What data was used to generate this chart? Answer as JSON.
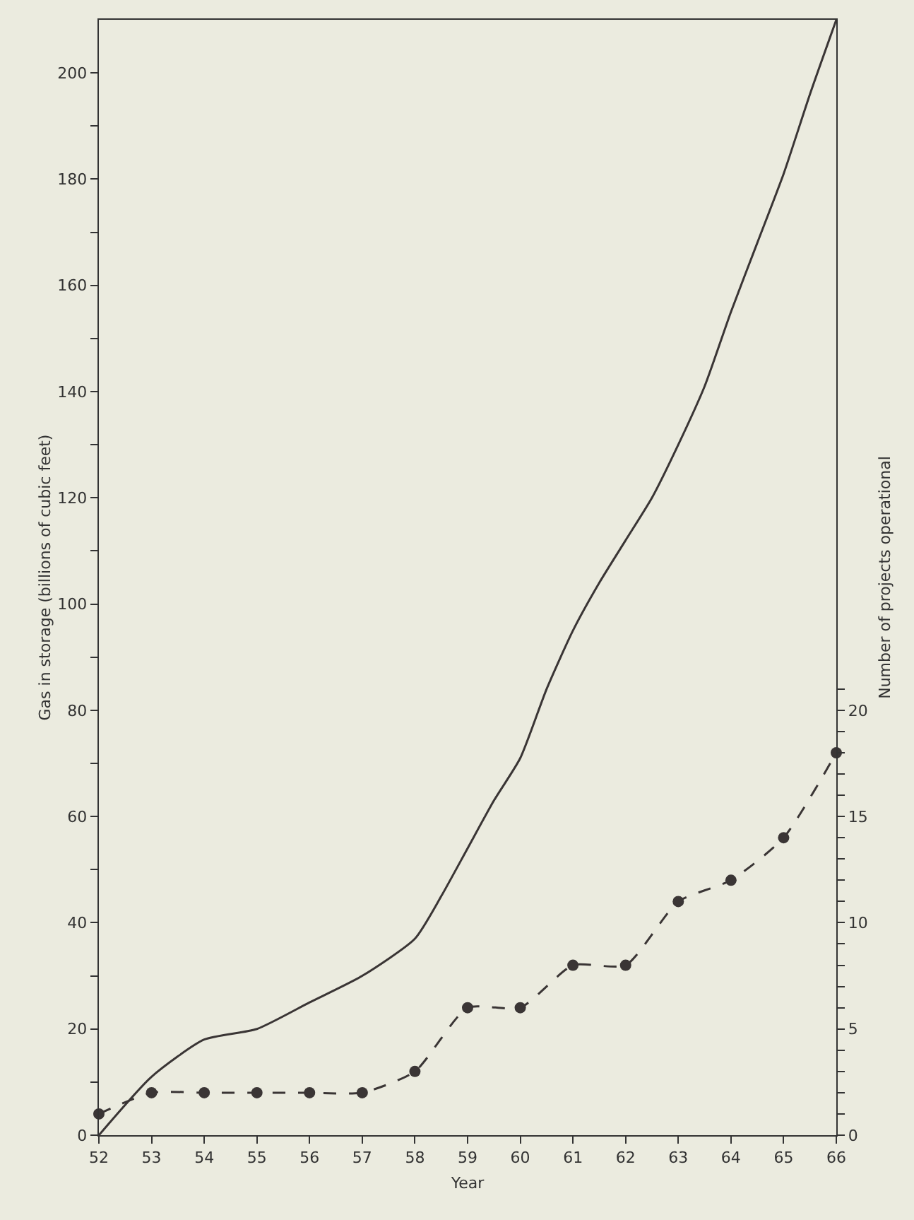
{
  "chart_data": {
    "type": "line",
    "xlabel": "Year",
    "ylabel": "Gas in storage (billions of cubic feet)",
    "y2label": "Number of projects operational",
    "xlim": [
      52,
      66
    ],
    "xticks": [
      52,
      53,
      54,
      55,
      56,
      57,
      58,
      59,
      60,
      61,
      62,
      63,
      64,
      65,
      66
    ],
    "ylim": [
      0,
      210
    ],
    "yticks": [
      0,
      {
        "value": 10,
        "label": null
      },
      20,
      {
        "value": 30,
        "label": null
      },
      40,
      {
        "value": 50,
        "label": null
      },
      60,
      {
        "value": 70,
        "label": null
      },
      80,
      {
        "value": 90,
        "label": null
      },
      100,
      {
        "value": 110,
        "label": null
      },
      120,
      {
        "value": 130,
        "label": null
      },
      140,
      {
        "value": 150,
        "label": null
      },
      160,
      {
        "value": 170,
        "label": null
      },
      180,
      {
        "value": 190,
        "label": null
      },
      200
    ],
    "y2lim": [
      0,
      52.5
    ],
    "y2ticks": [
      0,
      {
        "value": 1,
        "label": null
      },
      {
        "value": 2,
        "label": null
      },
      {
        "value": 3,
        "label": null
      },
      {
        "value": 4,
        "label": null
      },
      5,
      {
        "value": 6,
        "label": null
      },
      {
        "value": 7,
        "label": null
      },
      {
        "value": 8,
        "label": null
      },
      {
        "value": 9,
        "label": null
      },
      10,
      {
        "value": 11,
        "label": null
      },
      {
        "value": 12,
        "label": null
      },
      {
        "value": 13,
        "label": null
      },
      {
        "value": 14,
        "label": null
      },
      15,
      {
        "value": 16,
        "label": null
      },
      {
        "value": 17,
        "label": null
      },
      {
        "value": 18,
        "label": null
      },
      {
        "value": 19,
        "label": null
      },
      20,
      {
        "value": 21,
        "label": null
      }
    ],
    "grid": false,
    "series": [
      {
        "color": "#3a3535",
        "marker": "none",
        "line_style": "solid",
        "x": [
          52,
          53,
          54,
          55,
          56,
          57,
          58,
          58.5,
          59,
          59.5,
          60,
          60.5,
          61,
          61.5,
          62,
          62.5,
          63,
          63.5,
          64,
          64.5,
          65,
          65.5,
          66
        ],
        "values": [
          0,
          11,
          18,
          20,
          25,
          30,
          37,
          45,
          54,
          63,
          71,
          84,
          95,
          104,
          112,
          120,
          130,
          141,
          155,
          168,
          181,
          196,
          210
        ]
      },
      {
        "color": "#3a3535",
        "axis": "y2",
        "marker": "circle",
        "line_style": "dashed",
        "x": [
          52,
          53,
          54,
          55,
          56,
          57,
          58,
          59,
          60,
          61,
          62,
          63,
          64,
          65,
          66
        ],
        "values": [
          1,
          2,
          2,
          2,
          2,
          2,
          3,
          6,
          6,
          8,
          8,
          11,
          12,
          14,
          18
        ]
      }
    ]
  }
}
